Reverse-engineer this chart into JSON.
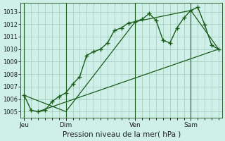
{
  "bg_color": "#cef0e8",
  "grid_color": "#a8cfc0",
  "line_color": "#1a5c1a",
  "ylabel": "Pression niveau de la mer( hPa )",
  "ylim": [
    1004.5,
    1013.7
  ],
  "yticks": [
    1005,
    1006,
    1007,
    1008,
    1009,
    1010,
    1011,
    1012,
    1013
  ],
  "day_labels": [
    "Jeu",
    "Dim",
    "Ven",
    "Sam"
  ],
  "line1_x": [
    0,
    1,
    2,
    3,
    4,
    5,
    6,
    7,
    8,
    9,
    10,
    11,
    12,
    13,
    14,
    15,
    16,
    17,
    18,
    19,
    20,
    21,
    22,
    23,
    24,
    25,
    26,
    27,
    28
  ],
  "line1_y": [
    1006.3,
    1005.1,
    1005.0,
    1005.1,
    1005.8,
    1006.2,
    1006.5,
    1007.2,
    1007.8,
    1009.5,
    1009.8,
    1010.0,
    1010.5,
    1011.5,
    1011.7,
    1012.1,
    1012.2,
    1012.4,
    1012.85,
    1012.3,
    1010.7,
    1010.5,
    1011.7,
    1012.5,
    1013.1,
    1013.35,
    1011.95,
    1010.3,
    1010.0
  ],
  "line2_x": [
    0,
    6,
    16,
    24,
    28
  ],
  "line2_y": [
    1006.3,
    1005.0,
    1012.2,
    1013.1,
    1010.0
  ],
  "line3_x": [
    2,
    28
  ],
  "line3_y": [
    1005.0,
    1010.0
  ],
  "vline_x": [
    0,
    6,
    16,
    24
  ],
  "xlim": [
    -0.5,
    28.5
  ]
}
